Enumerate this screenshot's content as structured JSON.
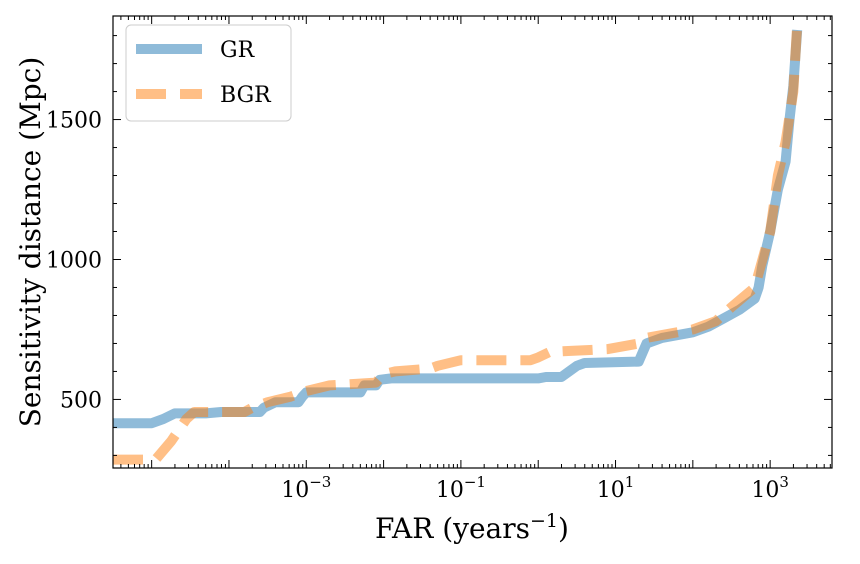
{
  "chart_data": {
    "type": "line",
    "title": "",
    "xlabel": "FAR (years−1)",
    "xlabel_main": "FAR (years",
    "xlabel_exp": "−1",
    "xlabel_close": ")",
    "ylabel": "Sensitivity distance (Mpc)",
    "xscale": "log",
    "xlim_log10": [
      -5.5,
      3.8
    ],
    "ylim": [
      255,
      1870
    ],
    "x_ticks": [
      {
        "log10": -3,
        "base": "10",
        "exp": "−3"
      },
      {
        "log10": -1,
        "base": "10",
        "exp": "−1"
      },
      {
        "log10": 1,
        "base": "10",
        "exp": "1"
      },
      {
        "log10": 3,
        "base": "10",
        "exp": "3"
      }
    ],
    "y_ticks": [
      500,
      1000,
      1500
    ],
    "legend_position": "top-left",
    "series": [
      {
        "name": "GR",
        "color": "#1f77b4",
        "style": "solid",
        "points_log10x": [
          [
            -5.5,
            415
          ],
          [
            -5.0,
            415
          ],
          [
            -4.85,
            430
          ],
          [
            -4.7,
            450
          ],
          [
            -4.3,
            450
          ],
          [
            -4.1,
            455
          ],
          [
            -3.6,
            455
          ],
          [
            -3.55,
            470
          ],
          [
            -3.4,
            490
          ],
          [
            -3.1,
            490
          ],
          [
            -3.05,
            510
          ],
          [
            -3.0,
            525
          ],
          [
            -2.3,
            525
          ],
          [
            -2.25,
            550
          ],
          [
            -2.1,
            550
          ],
          [
            -2.05,
            570
          ],
          [
            -1.9,
            575
          ],
          [
            0.0,
            575
          ],
          [
            0.1,
            580
          ],
          [
            0.3,
            580
          ],
          [
            0.4,
            600
          ],
          [
            0.5,
            620
          ],
          [
            0.6,
            630
          ],
          [
            1.3,
            635
          ],
          [
            1.4,
            700
          ],
          [
            1.6,
            720
          ],
          [
            2.0,
            740
          ],
          [
            2.2,
            760
          ],
          [
            2.4,
            790
          ],
          [
            2.6,
            820
          ],
          [
            2.8,
            860
          ],
          [
            2.85,
            900
          ],
          [
            2.9,
            980
          ],
          [
            3.0,
            1100
          ],
          [
            3.1,
            1250
          ],
          [
            3.2,
            1350
          ],
          [
            3.25,
            1500
          ],
          [
            3.3,
            1620
          ],
          [
            3.35,
            1820
          ]
        ]
      },
      {
        "name": "BGR",
        "color": "#ff7f0e",
        "style": "dashed",
        "points_log10x": [
          [
            -5.5,
            285
          ],
          [
            -4.95,
            285
          ],
          [
            -4.75,
            350
          ],
          [
            -4.55,
            430
          ],
          [
            -4.45,
            455
          ],
          [
            -3.8,
            455
          ],
          [
            -3.7,
            470
          ],
          [
            -3.5,
            490
          ],
          [
            -3.2,
            510
          ],
          [
            -3.0,
            530
          ],
          [
            -2.7,
            550
          ],
          [
            -2.1,
            560
          ],
          [
            -2.0,
            590
          ],
          [
            -1.85,
            600
          ],
          [
            -1.4,
            610
          ],
          [
            -1.3,
            620
          ],
          [
            -1.0,
            640
          ],
          [
            -0.1,
            640
          ],
          [
            0.0,
            650
          ],
          [
            0.15,
            670
          ],
          [
            0.9,
            680
          ],
          [
            1.3,
            700
          ],
          [
            1.4,
            720
          ],
          [
            1.6,
            730
          ],
          [
            2.0,
            750
          ],
          [
            2.3,
            780
          ],
          [
            2.5,
            830
          ],
          [
            2.8,
            900
          ],
          [
            3.0,
            1100
          ],
          [
            3.1,
            1300
          ],
          [
            3.2,
            1420
          ],
          [
            3.3,
            1600
          ],
          [
            3.35,
            1840
          ]
        ]
      }
    ]
  }
}
